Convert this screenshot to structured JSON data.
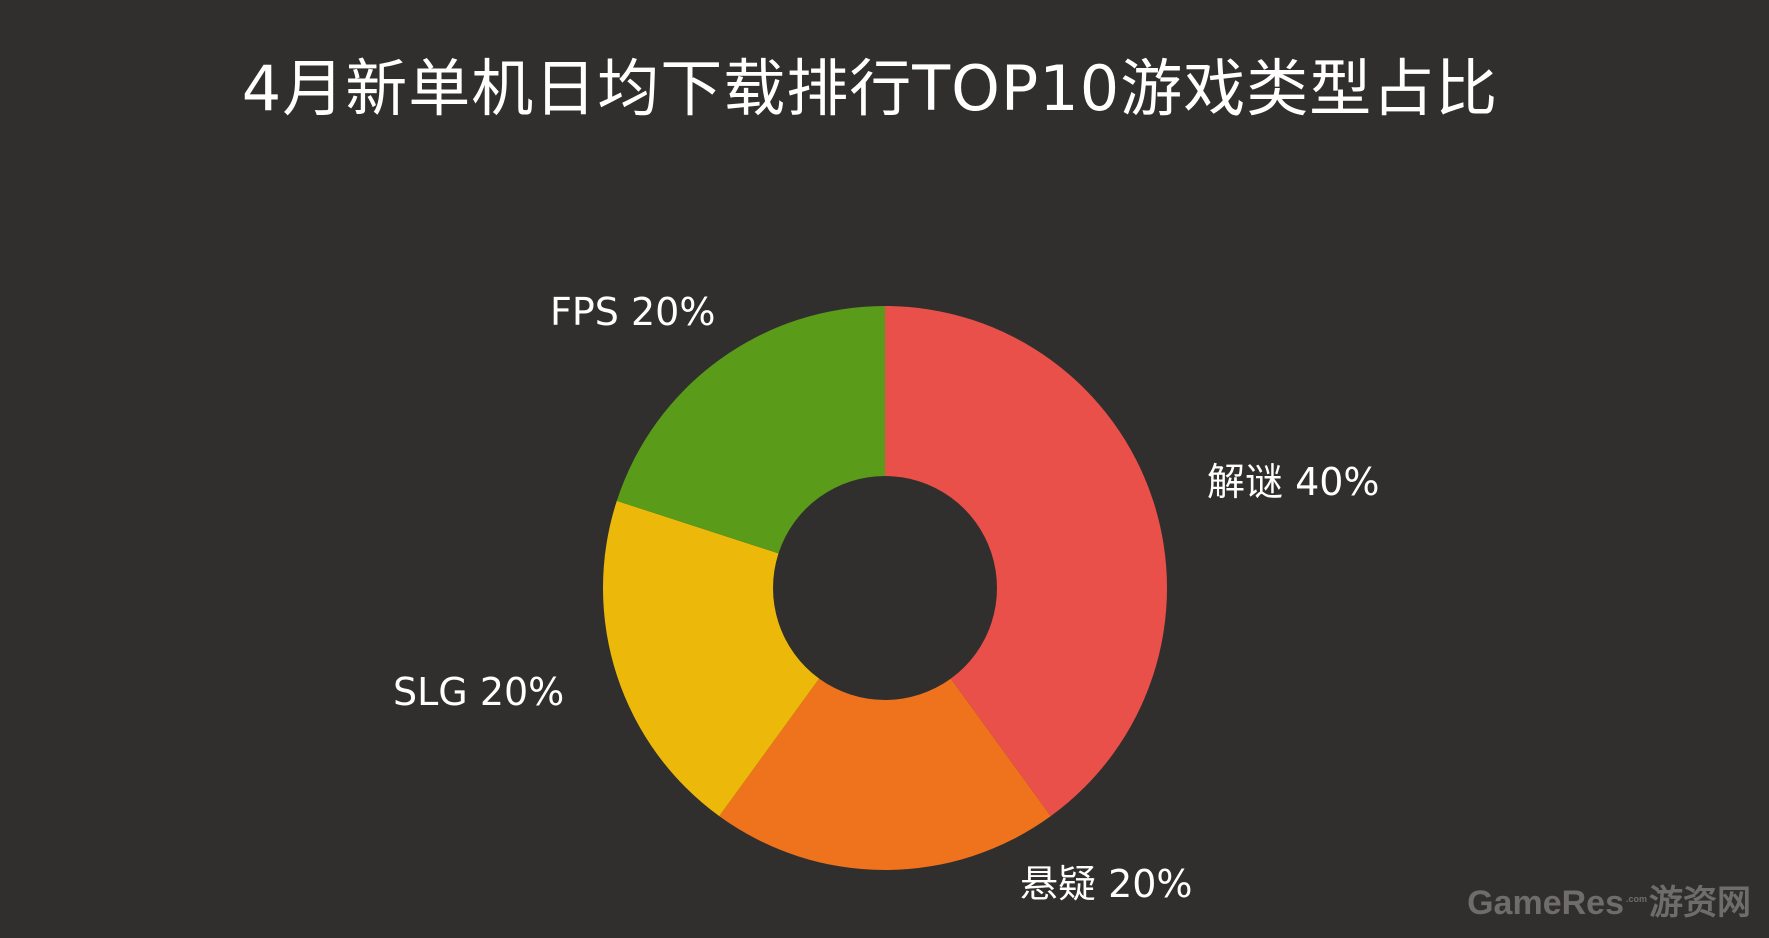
{
  "chart_data": {
    "type": "pie",
    "title": "4月新单机日均下载排行TOP10游戏类型占比",
    "donut": true,
    "slices": [
      {
        "label": "解谜 40%",
        "value": 40,
        "color": "#e9504a"
      },
      {
        "label": "悬疑 20%",
        "value": 20,
        "color": "#ef721c"
      },
      {
        "label": "SLG 20%",
        "value": 20,
        "color": "#ecb90a"
      },
      {
        "label": "FPS 20%",
        "value": 20,
        "color": "#5a9b19"
      }
    ]
  },
  "watermark": {
    "brand": "GameRes",
    "suffix": ".com",
    "cn": "游资网"
  }
}
